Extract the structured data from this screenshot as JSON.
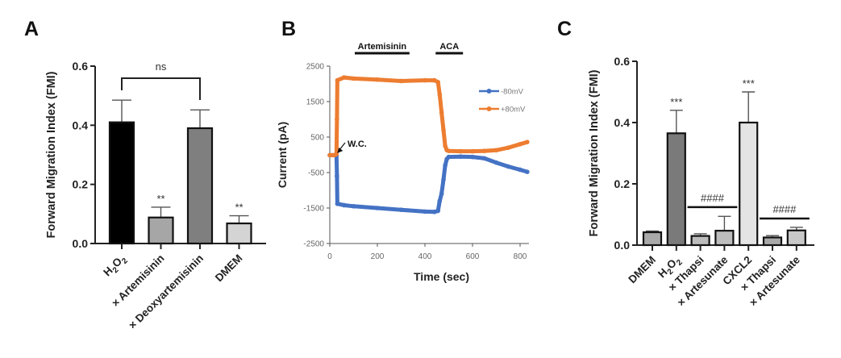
{
  "chart_data": [
    {
      "id": "A",
      "type": "bar",
      "panel_label": "A",
      "ylabel": "Forward Migration Index (FMI)",
      "ylim": [
        0,
        0.6
      ],
      "yticks": [
        "0.0",
        "0.2",
        "0.4",
        "0.6"
      ],
      "ytick_values": [
        0,
        0.2,
        0.4,
        0.6
      ],
      "categories": [
        "H2O2",
        "+ Artemisinin",
        "+ Deoxyartemisinin",
        "DMEM"
      ],
      "category_display": [
        {
          "main": "H",
          "sub1": "2",
          "mid": "O",
          "sub2": "2"
        },
        {
          "prefix": "× ",
          "main": "Artemisinin"
        },
        {
          "prefix": "× ",
          "main": "Deoxyartemisinin"
        },
        {
          "main": "DMEM"
        }
      ],
      "values": [
        0.41,
        0.088,
        0.39,
        0.068
      ],
      "errors": [
        0.075,
        0.035,
        0.062,
        0.026
      ],
      "colors": [
        "#000000",
        "#a6a6a6",
        "#7f7f7f",
        "#d4d4d4"
      ],
      "significance": [
        "",
        "**",
        "",
        "**"
      ],
      "bracket": {
        "from": 0,
        "to": 2,
        "label": "ns"
      }
    },
    {
      "id": "B",
      "type": "line",
      "panel_label": "B",
      "xlabel": "Time (sec)",
      "ylabel": "Current (pA)",
      "xlim": [
        0,
        830
      ],
      "ylim": [
        -2500,
        2500
      ],
      "xticks": [
        "0",
        "200",
        "400",
        "600",
        "800"
      ],
      "xtick_values": [
        0,
        200,
        400,
        600,
        800
      ],
      "yticks": [
        "2500",
        "1500",
        "500",
        "-500",
        "-1500",
        "-2500"
      ],
      "ytick_values": [
        2500,
        1500,
        500,
        -500,
        -1500,
        -2500
      ],
      "legend": [
        "-80mV",
        "+80mV"
      ],
      "legend_position": "top-right",
      "series": [
        {
          "name": "-80mV",
          "color": "#4472c4",
          "x": [
            0,
            20,
            28,
            30,
            32,
            60,
            100,
            200,
            300,
            400,
            440,
            455,
            462,
            470,
            478,
            485,
            492,
            500,
            550,
            600,
            650,
            700,
            750,
            800,
            830
          ],
          "y": [
            -10,
            -10,
            -20,
            -600,
            -1380,
            -1420,
            -1450,
            -1500,
            -1550,
            -1600,
            -1610,
            -1580,
            -1300,
            -1100,
            -700,
            -300,
            -120,
            -60,
            -50,
            -60,
            -100,
            -220,
            -330,
            -420,
            -480
          ]
        },
        {
          "name": "+80mV",
          "color": "#ed7d31",
          "x": [
            0,
            20,
            28,
            30,
            32,
            60,
            100,
            200,
            300,
            400,
            440,
            455,
            462,
            470,
            478,
            485,
            492,
            500,
            550,
            600,
            650,
            700,
            750,
            800,
            830
          ],
          "y": [
            -10,
            -10,
            20,
            1000,
            2100,
            2180,
            2150,
            2120,
            2080,
            2100,
            2100,
            2050,
            1700,
            1200,
            700,
            250,
            130,
            110,
            100,
            100,
            110,
            130,
            200,
            300,
            360
          ]
        }
      ],
      "annotations": [
        {
          "text": "W.C.",
          "x": 28,
          "y": 0
        },
        {
          "text": "Artemisinin",
          "x_start": 105,
          "x_end": 335
        },
        {
          "text": "ACA",
          "x_start": 445,
          "x_end": 560
        }
      ]
    },
    {
      "id": "C",
      "type": "bar",
      "panel_label": "C",
      "ylabel": "Forward Migration Index (FMI)",
      "ylim": [
        0,
        0.6
      ],
      "yticks": [
        "0.0",
        "0.2",
        "0.4",
        "0.6"
      ],
      "ytick_values": [
        0,
        0.2,
        0.4,
        0.6
      ],
      "categories": [
        "DMEM",
        "H2O2",
        "+ Thapsi",
        "+ Artesunate",
        "CXCL2",
        "+ Thapsi",
        "+ Artesunate"
      ],
      "category_display": [
        {
          "main": "DMEM"
        },
        {
          "main": "H",
          "sub1": "2",
          "mid": "O",
          "sub2": "2"
        },
        {
          "prefix": "× ",
          "main": "Thapsi"
        },
        {
          "prefix": "× ",
          "main": "Artesunate"
        },
        {
          "main": "CXCL2"
        },
        {
          "prefix": "× ",
          "main": "Thapsi"
        },
        {
          "prefix": "× ",
          "main": "Artesunate"
        }
      ],
      "values": [
        0.042,
        0.365,
        0.03,
        0.047,
        0.4,
        0.025,
        0.048
      ],
      "errors": [
        0.004,
        0.075,
        0.007,
        0.047,
        0.1,
        0.006,
        0.01
      ],
      "colors": [
        "#a9a9a9",
        "#7a7a7a",
        "#bdbdbd",
        "#bdbdbd",
        "#e4e4e4",
        "#a9a9a9",
        "#c8c8c8"
      ],
      "significance": [
        "",
        "***",
        "",
        "",
        "***",
        "",
        ""
      ],
      "group_lines": [
        {
          "from": 2,
          "to": 3,
          "value": 0.124,
          "label": "####"
        },
        {
          "from": 5,
          "to": 6,
          "value": 0.087,
          "label": "####"
        }
      ]
    }
  ]
}
